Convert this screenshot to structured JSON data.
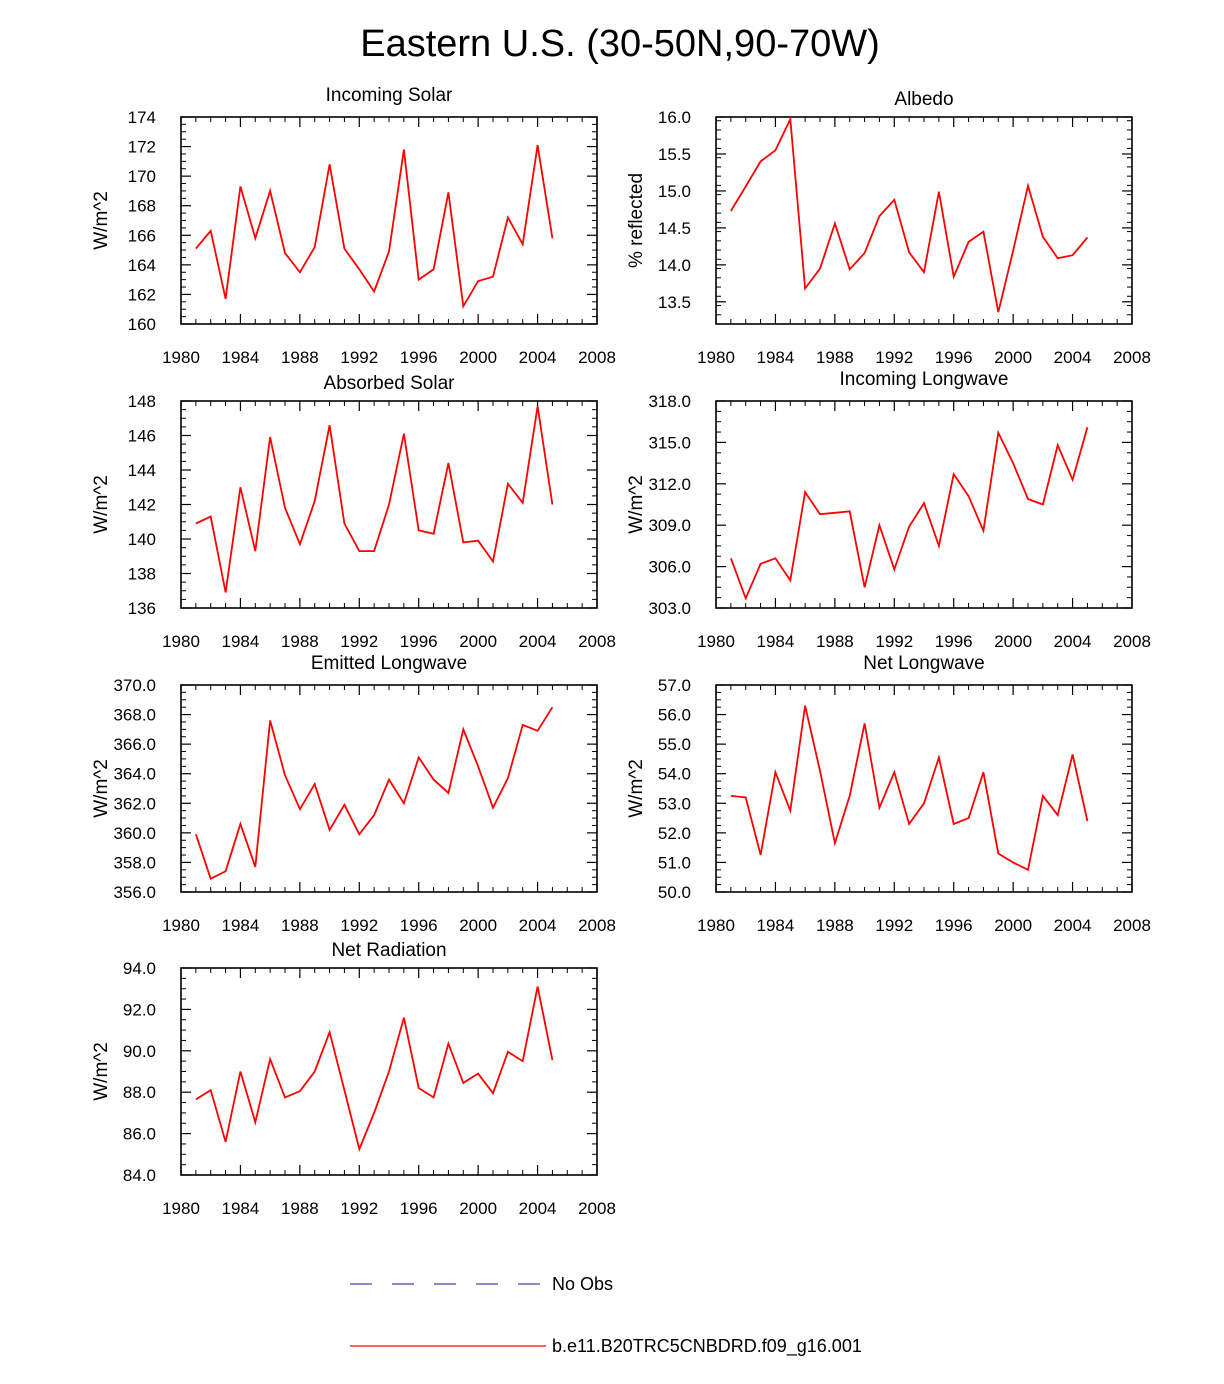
{
  "title": "Eastern U.S. (30-50N,90-70W)",
  "colors": {
    "series": "#ff0000",
    "obs": "#4444aa",
    "axis": "#000000"
  },
  "chart_data": [
    {
      "type": "line",
      "title": "Incoming Solar",
      "ylabel": "W/m^2",
      "xlim": [
        1980,
        2008
      ],
      "ylim": [
        160,
        174
      ],
      "xticks": [
        "1980",
        "1984",
        "1988",
        "1992",
        "1996",
        "2000",
        "2004",
        "2008"
      ],
      "yticks": [
        "160",
        "162",
        "164",
        "166",
        "168",
        "170",
        "172",
        "174"
      ],
      "x": [
        1981,
        1982,
        1983,
        1984,
        1985,
        1986,
        1987,
        1988,
        1989,
        1990,
        1991,
        1992,
        1993,
        1994,
        1995,
        1996,
        1997,
        1998,
        1999,
        2000,
        2001,
        2002,
        2003,
        2004,
        2005
      ],
      "values": [
        165.1,
        166.3,
        161.7,
        169.3,
        165.8,
        169.0,
        164.8,
        163.5,
        165.2,
        170.8,
        165.1,
        163.7,
        162.2,
        164.9,
        171.8,
        163.0,
        163.7,
        168.9,
        161.2,
        162.9,
        163.2,
        167.2,
        165.4,
        172.1,
        165.8
      ]
    },
    {
      "type": "line",
      "title": "Albedo",
      "ylabel": "% reflected",
      "xlim": [
        1980,
        2008
      ],
      "ylim": [
        13.2,
        16.0
      ],
      "xticks": [
        "1980",
        "1984",
        "1988",
        "1992",
        "1996",
        "2000",
        "2004",
        "2008"
      ],
      "yticks": [
        "13.5",
        "14.0",
        "14.5",
        "15.0",
        "15.5",
        "16.0"
      ],
      "x": [
        1981,
        1982,
        1983,
        1984,
        1985,
        1986,
        1987,
        1988,
        1989,
        1990,
        1991,
        1992,
        1993,
        1994,
        1995,
        1996,
        1997,
        1998,
        1999,
        2000,
        2001,
        2002,
        2003,
        2004,
        2005
      ],
      "values": [
        14.73,
        15.06,
        15.4,
        15.55,
        15.97,
        13.68,
        13.95,
        14.56,
        13.94,
        14.16,
        14.66,
        14.88,
        14.17,
        13.9,
        14.99,
        13.84,
        14.31,
        14.45,
        13.36,
        14.19,
        15.07,
        14.38,
        14.09,
        14.13,
        14.37
      ]
    },
    {
      "type": "line",
      "title": "Absorbed Solar",
      "ylabel": "W/m^2",
      "xlim": [
        1980,
        2008
      ],
      "ylim": [
        136,
        148
      ],
      "xticks": [
        "1980",
        "1984",
        "1988",
        "1992",
        "1996",
        "2000",
        "2004",
        "2008"
      ],
      "yticks": [
        "136",
        "138",
        "140",
        "142",
        "144",
        "146",
        "148"
      ],
      "x": [
        1981,
        1982,
        1983,
        1984,
        1985,
        1986,
        1987,
        1988,
        1989,
        1990,
        1991,
        1992,
        1993,
        1994,
        1995,
        1996,
        1997,
        1998,
        1999,
        2000,
        2001,
        2002,
        2003,
        2004,
        2005
      ],
      "values": [
        140.9,
        141.3,
        136.9,
        143.0,
        139.3,
        145.9,
        141.8,
        139.7,
        142.2,
        146.6,
        140.9,
        139.3,
        139.3,
        142.0,
        146.1,
        140.5,
        140.3,
        144.4,
        139.8,
        139.9,
        138.7,
        143.2,
        142.1,
        147.7,
        142.0
      ]
    },
    {
      "type": "line",
      "title": "Incoming Longwave",
      "ylabel": "W/m^2",
      "xlim": [
        1980,
        2008
      ],
      "ylim": [
        303,
        318
      ],
      "xticks": [
        "1980",
        "1984",
        "1988",
        "1992",
        "1996",
        "2000",
        "2004",
        "2008"
      ],
      "yticks": [
        "303.0",
        "306.0",
        "309.0",
        "312.0",
        "315.0",
        "318.0"
      ],
      "x": [
        1981,
        1982,
        1983,
        1984,
        1985,
        1986,
        1987,
        1988,
        1989,
        1990,
        1991,
        1992,
        1993,
        1994,
        1995,
        1996,
        1997,
        1998,
        1999,
        2000,
        2001,
        2002,
        2003,
        2004,
        2005
      ],
      "values": [
        306.6,
        303.7,
        306.2,
        306.6,
        305.0,
        311.4,
        309.8,
        309.9,
        310.0,
        304.5,
        309.0,
        305.8,
        308.9,
        310.6,
        307.5,
        312.7,
        311.1,
        308.6,
        315.7,
        313.5,
        310.9,
        310.5,
        314.8,
        312.3,
        316.1
      ]
    },
    {
      "type": "line",
      "title": "Emitted Longwave",
      "ylabel": "W/m^2",
      "xlim": [
        1980,
        2008
      ],
      "ylim": [
        356,
        370
      ],
      "xticks": [
        "1980",
        "1984",
        "1988",
        "1992",
        "1996",
        "2000",
        "2004",
        "2008"
      ],
      "yticks": [
        "356.0",
        "358.0",
        "360.0",
        "362.0",
        "364.0",
        "366.0",
        "368.0",
        "370.0"
      ],
      "x": [
        1981,
        1982,
        1983,
        1984,
        1985,
        1986,
        1987,
        1988,
        1989,
        1990,
        1991,
        1992,
        1993,
        1994,
        1995,
        1996,
        1997,
        1998,
        1999,
        2000,
        2001,
        2002,
        2003,
        2004,
        2005
      ],
      "values": [
        359.9,
        356.9,
        357.4,
        360.6,
        357.7,
        367.6,
        363.9,
        361.6,
        363.3,
        360.2,
        361.9,
        359.9,
        361.2,
        363.6,
        362.0,
        365.1,
        363.6,
        362.7,
        367.0,
        364.5,
        361.7,
        363.7,
        367.3,
        366.9,
        368.5
      ]
    },
    {
      "type": "line",
      "title": "Net Longwave",
      "ylabel": "W/m^2",
      "xlim": [
        1980,
        2008
      ],
      "ylim": [
        50,
        57
      ],
      "xticks": [
        "1980",
        "1984",
        "1988",
        "1992",
        "1996",
        "2000",
        "2004",
        "2008"
      ],
      "yticks": [
        "50.0",
        "51.0",
        "52.0",
        "53.0",
        "54.0",
        "55.0",
        "56.0",
        "57.0"
      ],
      "x": [
        1981,
        1982,
        1983,
        1984,
        1985,
        1986,
        1987,
        1988,
        1989,
        1990,
        1991,
        1992,
        1993,
        1994,
        1995,
        1996,
        1997,
        1998,
        1999,
        2000,
        2001,
        2002,
        2003,
        2004,
        2005
      ],
      "values": [
        53.25,
        53.2,
        51.25,
        54.05,
        52.75,
        56.3,
        54.1,
        51.65,
        53.25,
        55.7,
        52.85,
        54.05,
        52.3,
        53.0,
        54.55,
        52.3,
        52.5,
        54.05,
        51.3,
        51.0,
        50.75,
        53.25,
        52.6,
        54.65,
        52.4
      ]
    },
    {
      "type": "line",
      "title": "Net Radiation",
      "ylabel": "W/m^2",
      "xlim": [
        1980,
        2008
      ],
      "ylim": [
        84,
        94
      ],
      "xticks": [
        "1980",
        "1984",
        "1988",
        "1992",
        "1996",
        "2000",
        "2004",
        "2008"
      ],
      "yticks": [
        "84.0",
        "86.0",
        "88.0",
        "90.0",
        "92.0",
        "94.0"
      ],
      "x": [
        1981,
        1982,
        1983,
        1984,
        1985,
        1986,
        1987,
        1988,
        1989,
        1990,
        1991,
        1992,
        1993,
        1994,
        1995,
        1996,
        1997,
        1998,
        1999,
        2000,
        2001,
        2002,
        2003,
        2004,
        2005
      ],
      "values": [
        87.65,
        88.1,
        85.6,
        89.0,
        86.55,
        89.6,
        87.75,
        88.05,
        89.0,
        90.9,
        88.1,
        85.25,
        87.0,
        89.0,
        91.6,
        88.2,
        87.75,
        90.35,
        88.45,
        88.9,
        87.95,
        89.95,
        89.5,
        93.1,
        89.55
      ]
    }
  ],
  "legend": {
    "items": [
      {
        "label": "No Obs",
        "style": "dashed"
      },
      {
        "label": "b.e11.B20TRC5CNBDRD.f09_g16.001",
        "style": "solid"
      }
    ]
  }
}
